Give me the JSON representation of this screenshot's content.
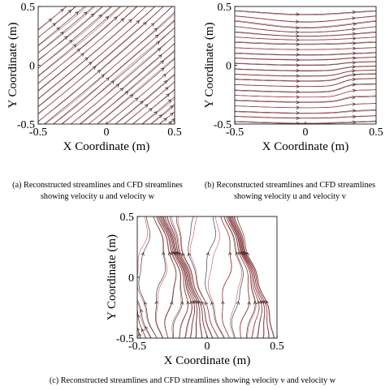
{
  "chart_data": [
    {
      "type": "streamline",
      "id": "a",
      "xlabel": "X Coordinate (m)",
      "ylabel": "Y Coordinate (m)",
      "xlim": [
        -0.5,
        0.5
      ],
      "ylim": [
        -0.5,
        0.5
      ],
      "xticks": [
        "-0.5",
        "0",
        "0.5"
      ],
      "yticks": [
        "-0.5",
        "0",
        "0.5"
      ],
      "grid": false,
      "series": [
        {
          "color": "#222222"
        },
        {
          "color": "#c0282d"
        }
      ],
      "flow": "uniform diagonal flow toward upper right, slope steeper near top",
      "caption_lines": [
        "(a) Reconstructed streamlines and CFD streamlines",
        "showing velocity u and velocity w"
      ]
    },
    {
      "type": "streamline",
      "id": "b",
      "xlabel": "X Coordinate (m)",
      "ylabel": "Y Coordinate (m)",
      "xlim": [
        -0.5,
        0.5
      ],
      "ylim": [
        -0.5,
        0.5
      ],
      "xticks": [
        "-0.5",
        "0",
        "0.5"
      ],
      "yticks": [
        "-0.5",
        "0",
        "0.5"
      ],
      "grid": false,
      "series": [
        {
          "color": "#222222"
        },
        {
          "color": "#c0282d"
        }
      ],
      "flow": "mostly horizontal flow to the right with a bulge near x=0.3, y=-0.2",
      "caption_lines": [
        "(b) Reconstructed streamlines and CFD streamlines",
        "showing velocity u and velocity v"
      ]
    },
    {
      "type": "streamline",
      "id": "c",
      "xlabel": "X Coordinate (m)",
      "ylabel": "Y Coordinate (m)",
      "xlim": [
        -0.5,
        0.5
      ],
      "ylim": [
        -0.5,
        0.5
      ],
      "xticks": [
        "-0.5",
        "0",
        "0.5"
      ],
      "yticks": [
        "-0.5",
        "0",
        "0.5"
      ],
      "grid": false,
      "series": [
        {
          "color": "#222222"
        },
        {
          "color": "#c0282d"
        }
      ],
      "flow": "mostly vertical upward flow with wavy lateral deviations",
      "caption_lines": [
        "(c) Reconstructed streamlines and CFD streamlines showing velocity v and velocity w"
      ]
    }
  ]
}
